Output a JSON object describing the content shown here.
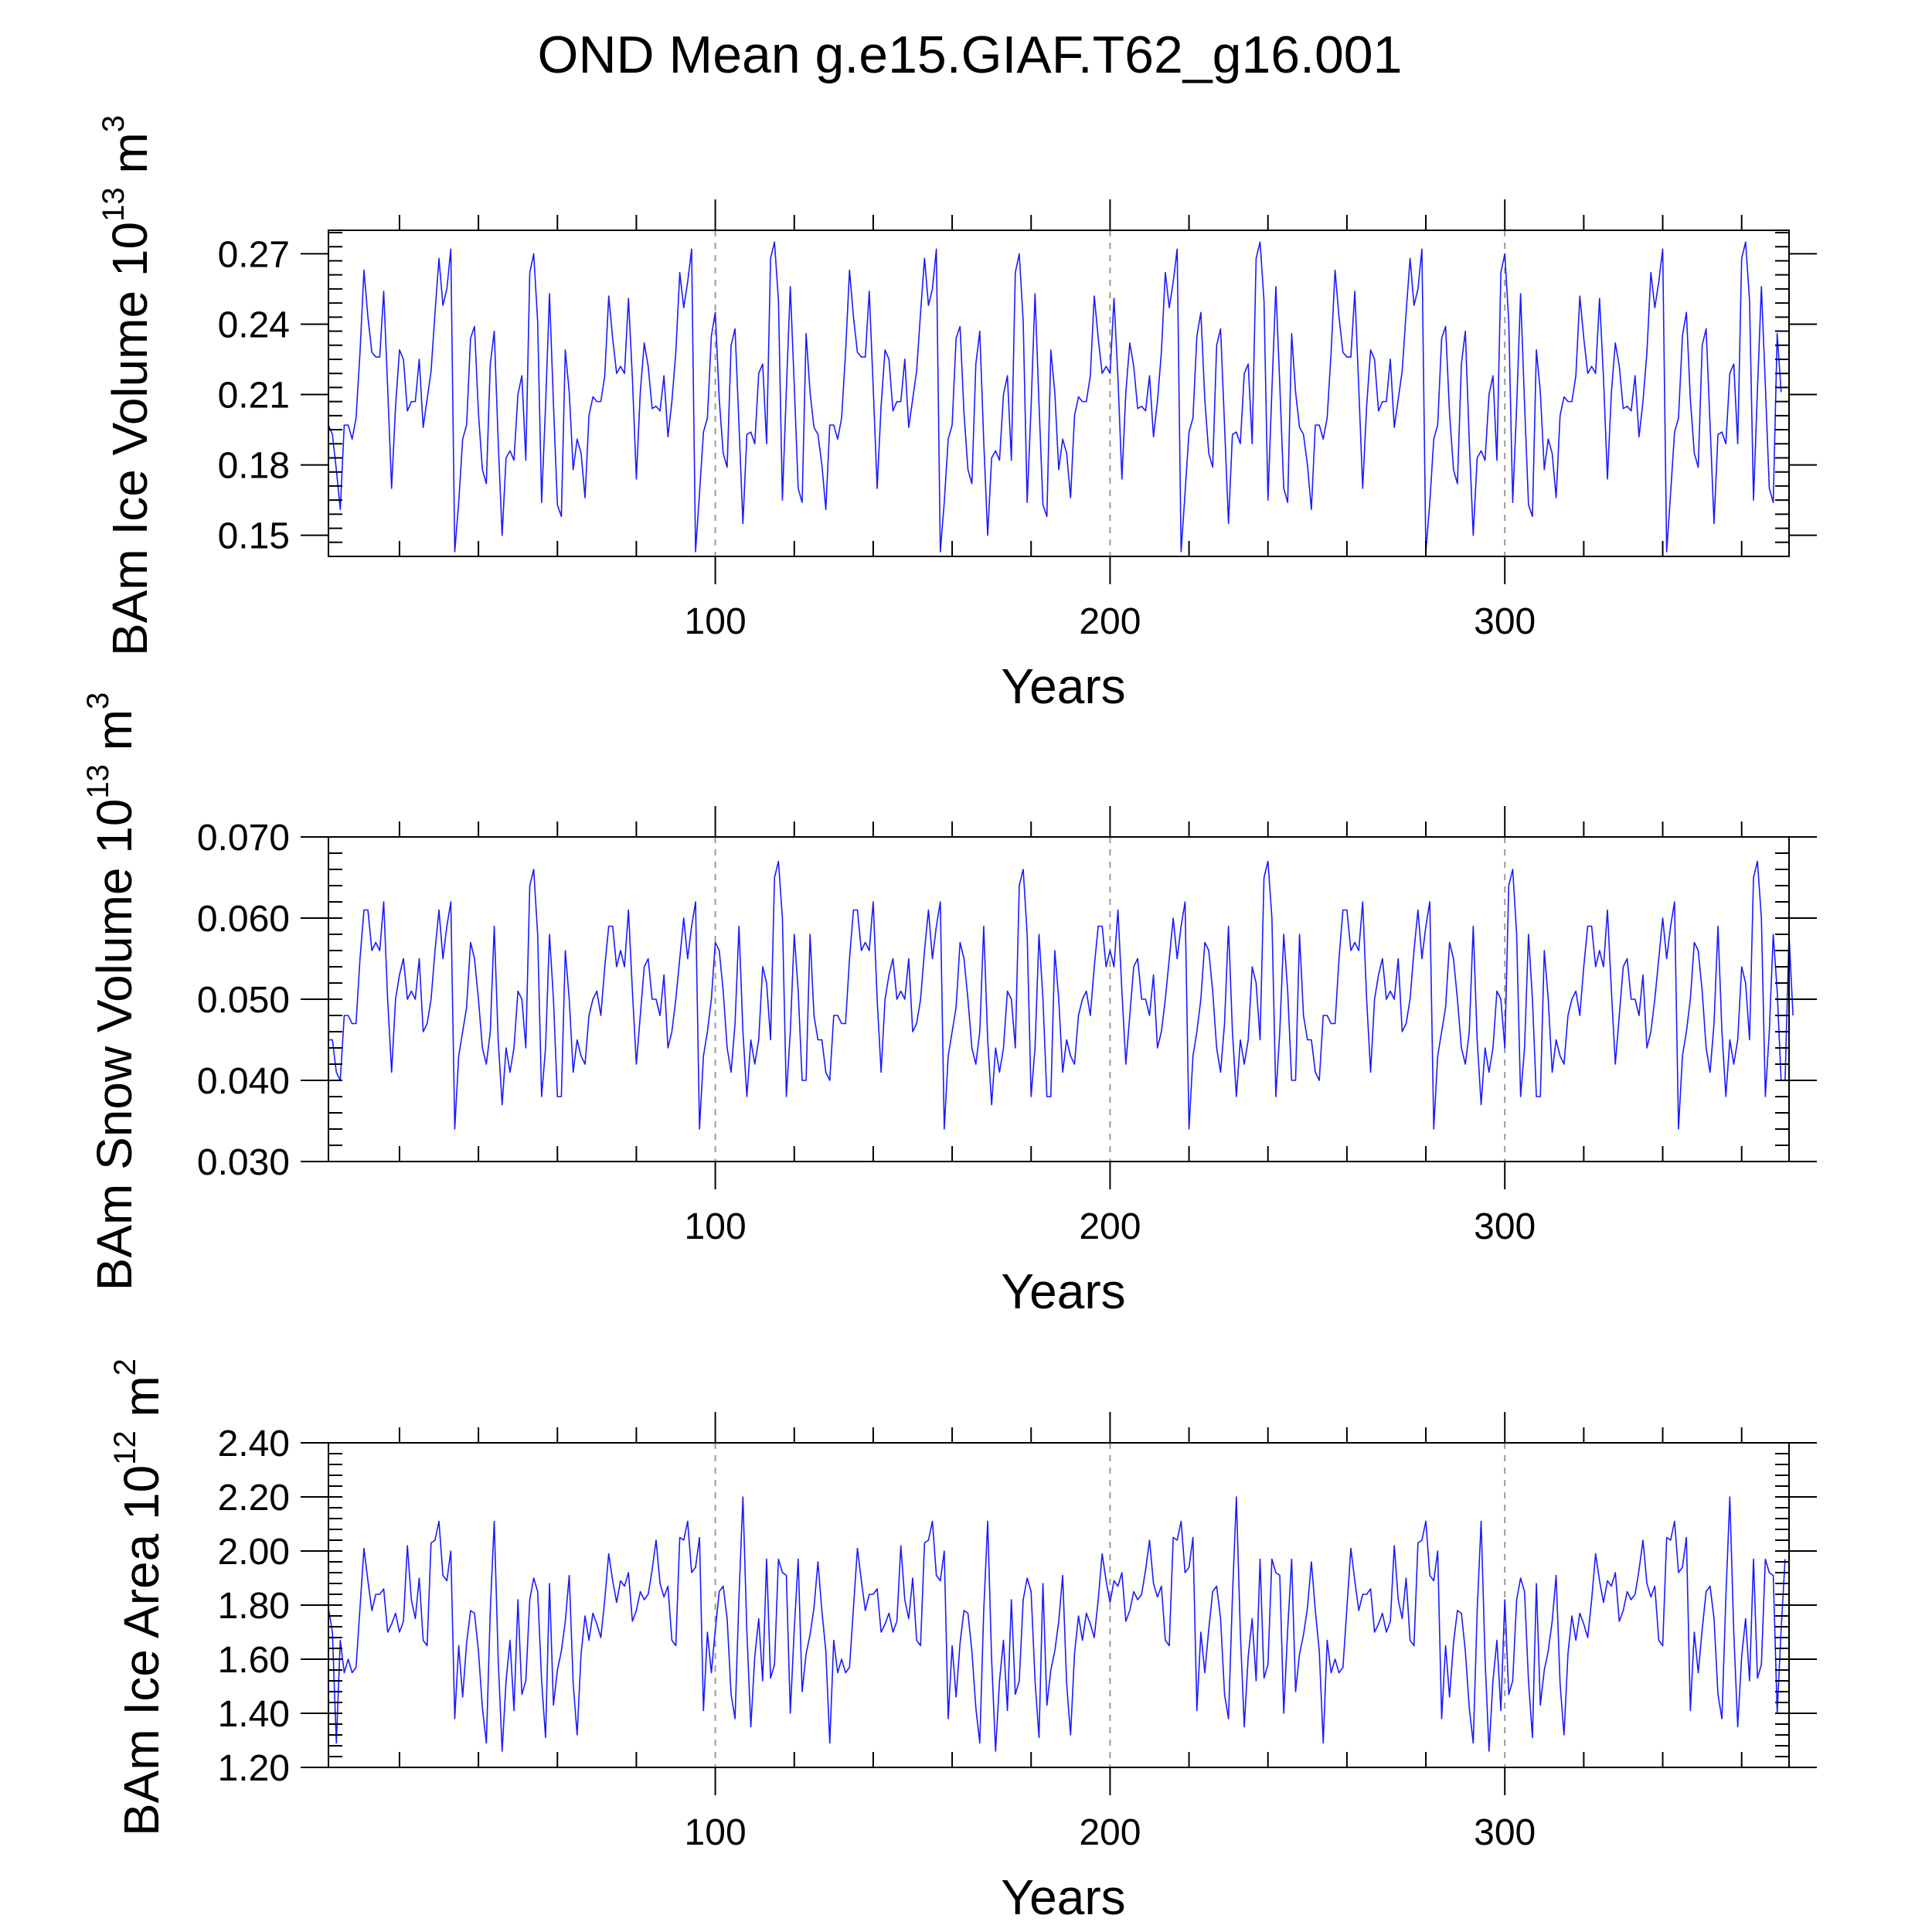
{
  "figure_title": "OND Mean g.e15.GIAF.T62_g16.001",
  "chart_data": [
    {
      "type": "line",
      "ylabel_main": "BAm Ice Volume 10",
      "ylabel_exp": "13",
      "ylabel_unit": " m",
      "ylabel_unit_exp": "3",
      "xlabel": "Years",
      "xlim": [
        2,
        372
      ],
      "ylim": [
        0.141,
        0.28
      ],
      "x_ticks": [
        100,
        200,
        300
      ],
      "x_tick_labels": [
        "100",
        "200",
        "300"
      ],
      "y_ticks": [
        0.15,
        0.18,
        0.21,
        0.24,
        0.27
      ],
      "y_tick_labels": [
        "0.15",
        "0.18",
        "0.21",
        "0.24",
        "0.27"
      ],
      "grid_x": [
        100,
        200,
        300
      ],
      "x_start": 2,
      "values": [
        0.197,
        0.193,
        0.178,
        0.161,
        0.197,
        0.197,
        0.191,
        0.2,
        0.228,
        0.263,
        0.243,
        0.228,
        0.226,
        0.226,
        0.254,
        0.213,
        0.17,
        0.205,
        0.229,
        0.225,
        0.203,
        0.207,
        0.207,
        0.225,
        0.196,
        0.208,
        0.22,
        0.245,
        0.268,
        0.248,
        0.255,
        0.272,
        0.143,
        0.164,
        0.191,
        0.197,
        0.234,
        0.239,
        0.202,
        0.178,
        0.172,
        0.223,
        0.237,
        0.19,
        0.15,
        0.183,
        0.186,
        0.182,
        0.21,
        0.218,
        0.182,
        0.262,
        0.27,
        0.241,
        0.164,
        0.205,
        0.253,
        0.206,
        0.163,
        0.158,
        0.229,
        0.211,
        0.178,
        0.191,
        0.185,
        0.166,
        0.201,
        0.209,
        0.207,
        0.207,
        0.218,
        0.252,
        0.234,
        0.219,
        0.222,
        0.219,
        0.251,
        0.217,
        0.174,
        0.211,
        0.232,
        0.222,
        0.204,
        0.205,
        0.203,
        0.218,
        0.192,
        0.207,
        0.228,
        0.262,
        0.247,
        0.258,
        0.272,
        0.143,
        0.168,
        0.194,
        0.2,
        0.235,
        0.245,
        0.208,
        0.185,
        0.179,
        0.231,
        0.238,
        0.197,
        0.155,
        0.193,
        0.194,
        0.189,
        0.219,
        0.223,
        0.189,
        0.268,
        0.275,
        0.25,
        0.165,
        0.212,
        0.256,
        0.214,
        0.17,
        0.164,
        0.236,
        0.211,
        0.196,
        0.193,
        0.18,
        0.161,
        0.197,
        0.197,
        0.191,
        0.2,
        0.228,
        0.263,
        0.243,
        0.228,
        0.226,
        0.226,
        0.254,
        0.213,
        0.17,
        0.205,
        0.229,
        0.225,
        0.203,
        0.207,
        0.207,
        0.225,
        0.196,
        0.208,
        0.22,
        0.245,
        0.268,
        0.248,
        0.255,
        0.272,
        0.143,
        0.164,
        0.191,
        0.197,
        0.234,
        0.239,
        0.202,
        0.178,
        0.172,
        0.223,
        0.237,
        0.19,
        0.15,
        0.183,
        0.186,
        0.182,
        0.21,
        0.218,
        0.182,
        0.262,
        0.27,
        0.241,
        0.164,
        0.205,
        0.253,
        0.206,
        0.163,
        0.158,
        0.229,
        0.211,
        0.178,
        0.191,
        0.185,
        0.166,
        0.201,
        0.209,
        0.207,
        0.207,
        0.218,
        0.252,
        0.234,
        0.219,
        0.222,
        0.219,
        0.251,
        0.217,
        0.174,
        0.211,
        0.232,
        0.222,
        0.204,
        0.205,
        0.203,
        0.218,
        0.192,
        0.207,
        0.228,
        0.262,
        0.247,
        0.258,
        0.272,
        0.143,
        0.168,
        0.194,
        0.2,
        0.235,
        0.245,
        0.208,
        0.185,
        0.179,
        0.231,
        0.238,
        0.197,
        0.155,
        0.193,
        0.194,
        0.189,
        0.219,
        0.223,
        0.189,
        0.268,
        0.275,
        0.25,
        0.165,
        0.212,
        0.256,
        0.214,
        0.17,
        0.164,
        0.236,
        0.211,
        0.196,
        0.193,
        0.18,
        0.161,
        0.197,
        0.197,
        0.191,
        0.2,
        0.228,
        0.263,
        0.243,
        0.228,
        0.226,
        0.226,
        0.254,
        0.213,
        0.17,
        0.205,
        0.229,
        0.225,
        0.203,
        0.207,
        0.207,
        0.225,
        0.196,
        0.208,
        0.22,
        0.245,
        0.268,
        0.248,
        0.255,
        0.272,
        0.143,
        0.164,
        0.191,
        0.197,
        0.234,
        0.239,
        0.202,
        0.178,
        0.172,
        0.223,
        0.237,
        0.19,
        0.15,
        0.183,
        0.186,
        0.182,
        0.21,
        0.218,
        0.182,
        0.262,
        0.27,
        0.241,
        0.164,
        0.205,
        0.253,
        0.206,
        0.163,
        0.158,
        0.229,
        0.211,
        0.178,
        0.191,
        0.185,
        0.166,
        0.201,
        0.209,
        0.207,
        0.207,
        0.218,
        0.252,
        0.234,
        0.219,
        0.222,
        0.219,
        0.251,
        0.217,
        0.174,
        0.211,
        0.232,
        0.222,
        0.204,
        0.205,
        0.203,
        0.218,
        0.192,
        0.207,
        0.228,
        0.262,
        0.247,
        0.258,
        0.272,
        0.143,
        0.168,
        0.194,
        0.2,
        0.235,
        0.245,
        0.208,
        0.185,
        0.179,
        0.231,
        0.238,
        0.197,
        0.155,
        0.193,
        0.194,
        0.189,
        0.219,
        0.223,
        0.189,
        0.268,
        0.275,
        0.25,
        0.165,
        0.212,
        0.256,
        0.214,
        0.17,
        0.164,
        0.236,
        0.211
      ]
    },
    {
      "type": "line",
      "ylabel_main": "BAm Snow Volume 10",
      "ylabel_exp": "13",
      "ylabel_unit": " m",
      "ylabel_unit_exp": "3",
      "xlabel": "Years",
      "xlim": [
        2,
        372
      ],
      "ylim": [
        0.03,
        0.07
      ],
      "x_ticks": [
        100,
        200,
        300
      ],
      "x_tick_labels": [
        "100",
        "200",
        "300"
      ],
      "y_ticks": [
        0.03,
        0.04,
        0.05,
        0.06,
        0.07
      ],
      "y_tick_labels": [
        "0.030",
        "0.040",
        "0.050",
        "0.060",
        "0.070"
      ],
      "grid_x": [
        100,
        200,
        300
      ],
      "x_start": 2,
      "values": [
        0.045,
        0.045,
        0.041,
        0.04,
        0.048,
        0.048,
        0.047,
        0.047,
        0.055,
        0.061,
        0.061,
        0.056,
        0.057,
        0.056,
        0.062,
        0.05,
        0.041,
        0.05,
        0.053,
        0.055,
        0.05,
        0.051,
        0.05,
        0.055,
        0.046,
        0.047,
        0.05,
        0.056,
        0.061,
        0.055,
        0.059,
        0.062,
        0.034,
        0.043,
        0.046,
        0.049,
        0.057,
        0.055,
        0.05,
        0.044,
        0.042,
        0.046,
        0.059,
        0.045,
        0.037,
        0.044,
        0.041,
        0.044,
        0.051,
        0.05,
        0.044,
        0.064,
        0.066,
        0.058,
        0.038,
        0.044,
        0.058,
        0.05,
        0.038,
        0.038,
        0.056,
        0.05,
        0.041,
        0.045,
        0.043,
        0.042,
        0.048,
        0.05,
        0.051,
        0.048,
        0.054,
        0.059,
        0.059,
        0.054,
        0.056,
        0.054,
        0.061,
        0.051,
        0.042,
        0.048,
        0.054,
        0.055,
        0.05,
        0.05,
        0.048,
        0.053,
        0.044,
        0.046,
        0.05,
        0.055,
        0.06,
        0.055,
        0.059,
        0.062,
        0.034,
        0.043,
        0.046,
        0.05,
        0.057,
        0.056,
        0.051,
        0.044,
        0.041,
        0.047,
        0.059,
        0.046,
        0.038,
        0.045,
        0.042,
        0.045,
        0.054,
        0.052,
        0.045,
        0.065,
        0.067,
        0.06,
        0.038,
        0.046,
        0.058,
        0.051,
        0.04,
        0.04,
        0.058,
        0.048,
        0.045,
        0.045,
        0.041,
        0.04,
        0.048,
        0.048,
        0.047,
        0.047,
        0.055,
        0.061,
        0.061,
        0.056,
        0.057,
        0.056,
        0.062,
        0.05,
        0.041,
        0.05,
        0.053,
        0.055,
        0.05,
        0.051,
        0.05,
        0.055,
        0.046,
        0.047,
        0.05,
        0.056,
        0.061,
        0.055,
        0.059,
        0.062,
        0.034,
        0.043,
        0.046,
        0.049,
        0.057,
        0.055,
        0.05,
        0.044,
        0.042,
        0.046,
        0.059,
        0.045,
        0.037,
        0.044,
        0.041,
        0.044,
        0.051,
        0.05,
        0.044,
        0.064,
        0.066,
        0.058,
        0.038,
        0.044,
        0.058,
        0.05,
        0.038,
        0.038,
        0.056,
        0.05,
        0.041,
        0.045,
        0.043,
        0.042,
        0.048,
        0.05,
        0.051,
        0.048,
        0.054,
        0.059,
        0.059,
        0.054,
        0.056,
        0.054,
        0.061,
        0.051,
        0.042,
        0.048,
        0.054,
        0.055,
        0.05,
        0.05,
        0.048,
        0.053,
        0.044,
        0.046,
        0.05,
        0.055,
        0.06,
        0.055,
        0.059,
        0.062,
        0.034,
        0.043,
        0.046,
        0.05,
        0.057,
        0.056,
        0.051,
        0.044,
        0.041,
        0.047,
        0.059,
        0.046,
        0.038,
        0.045,
        0.042,
        0.045,
        0.054,
        0.052,
        0.045,
        0.065,
        0.067,
        0.06,
        0.038,
        0.046,
        0.058,
        0.051,
        0.04,
        0.04,
        0.058,
        0.048,
        0.045,
        0.045,
        0.041,
        0.04,
        0.048,
        0.048,
        0.047,
        0.047,
        0.055,
        0.061,
        0.061,
        0.056,
        0.057,
        0.056,
        0.062,
        0.05,
        0.041,
        0.05,
        0.053,
        0.055,
        0.05,
        0.051,
        0.05,
        0.055,
        0.046,
        0.047,
        0.05,
        0.056,
        0.061,
        0.055,
        0.059,
        0.062,
        0.034,
        0.043,
        0.046,
        0.049,
        0.057,
        0.055,
        0.05,
        0.044,
        0.042,
        0.046,
        0.059,
        0.045,
        0.037,
        0.044,
        0.041,
        0.044,
        0.051,
        0.05,
        0.044,
        0.064,
        0.066,
        0.058,
        0.038,
        0.044,
        0.058,
        0.05,
        0.038,
        0.038,
        0.056,
        0.05,
        0.041,
        0.045,
        0.043,
        0.042,
        0.048,
        0.05,
        0.051,
        0.048,
        0.054,
        0.059,
        0.059,
        0.054,
        0.056,
        0.054,
        0.061,
        0.051,
        0.042,
        0.048,
        0.054,
        0.055,
        0.05,
        0.05,
        0.048,
        0.053,
        0.044,
        0.046,
        0.05,
        0.055,
        0.06,
        0.055,
        0.059,
        0.062,
        0.034,
        0.043,
        0.046,
        0.05,
        0.057,
        0.056,
        0.051,
        0.044,
        0.041,
        0.047,
        0.059,
        0.046,
        0.038,
        0.045,
        0.042,
        0.045,
        0.054,
        0.052,
        0.045,
        0.065,
        0.067,
        0.06,
        0.038,
        0.046,
        0.058,
        0.051,
        0.04,
        0.04,
        0.058,
        0.048
      ]
    },
    {
      "type": "line",
      "ylabel_main": "BAm Ice Area 10",
      "ylabel_exp": "12",
      "ylabel_unit": " m",
      "ylabel_unit_exp": "2",
      "xlabel": "Years",
      "xlim": [
        2,
        372
      ],
      "ylim": [
        1.2,
        2.4
      ],
      "x_ticks": [
        100,
        200,
        300
      ],
      "x_tick_labels": [
        "100",
        "200",
        "300"
      ],
      "y_ticks": [
        1.2,
        1.4,
        1.6,
        1.8,
        2.0,
        2.2,
        2.4
      ],
      "y_tick_labels": [
        "1.20",
        "1.40",
        "1.60",
        "1.80",
        "2.00",
        "2.20",
        "2.40"
      ],
      "grid_x": [
        100,
        200,
        300
      ],
      "x_start": 2,
      "values": [
        1.79,
        1.7,
        1.29,
        1.67,
        1.55,
        1.6,
        1.55,
        1.57,
        1.79,
        2.01,
        1.89,
        1.78,
        1.84,
        1.84,
        1.86,
        1.7,
        1.73,
        1.77,
        1.7,
        1.74,
        2.02,
        1.82,
        1.75,
        1.9,
        1.67,
        1.65,
        2.03,
        2.04,
        2.11,
        1.91,
        1.89,
        2.0,
        1.38,
        1.65,
        1.46,
        1.66,
        1.78,
        1.77,
        1.63,
        1.42,
        1.29,
        1.78,
        2.11,
        1.6,
        1.26,
        1.52,
        1.67,
        1.41,
        1.82,
        1.47,
        1.52,
        1.82,
        1.9,
        1.85,
        1.52,
        1.31,
        1.88,
        1.43,
        1.56,
        1.63,
        1.74,
        1.91,
        1.51,
        1.32,
        1.62,
        1.76,
        1.67,
        1.77,
        1.73,
        1.68,
        1.82,
        1.99,
        1.89,
        1.81,
        1.89,
        1.87,
        1.92,
        1.74,
        1.78,
        1.85,
        1.82,
        1.84,
        1.93,
        2.04,
        1.88,
        1.83,
        1.87,
        1.67,
        1.65,
        2.05,
        2.04,
        2.11,
        1.92,
        1.94,
        2.05,
        1.41,
        1.7,
        1.55,
        1.71,
        1.85,
        1.87,
        1.75,
        1.47,
        1.38,
        1.83,
        2.2,
        1.7,
        1.35,
        1.61,
        1.75,
        1.52,
        1.97,
        1.53,
        1.58,
        1.97,
        1.92,
        1.91,
        1.4,
        1.71,
        1.97,
        1.48,
        1.62,
        1.69,
        1.79,
        1.96,
        1.78,
        1.63,
        1.29,
        1.67,
        1.55,
        1.6,
        1.55,
        1.57,
        1.79,
        2.01,
        1.89,
        1.78,
        1.84,
        1.84,
        1.86,
        1.7,
        1.73,
        1.77,
        1.7,
        1.74,
        2.02,
        1.82,
        1.75,
        1.9,
        1.67,
        1.65,
        2.03,
        2.04,
        2.11,
        1.91,
        1.89,
        2.0,
        1.38,
        1.65,
        1.46,
        1.66,
        1.78,
        1.77,
        1.63,
        1.42,
        1.29,
        1.78,
        2.11,
        1.6,
        1.26,
        1.52,
        1.67,
        1.41,
        1.82,
        1.47,
        1.52,
        1.82,
        1.9,
        1.85,
        1.52,
        1.31,
        1.88,
        1.43,
        1.56,
        1.63,
        1.74,
        1.91,
        1.51,
        1.32,
        1.62,
        1.76,
        1.67,
        1.77,
        1.73,
        1.68,
        1.82,
        1.99,
        1.89,
        1.81,
        1.89,
        1.87,
        1.92,
        1.74,
        1.78,
        1.85,
        1.82,
        1.84,
        1.93,
        2.04,
        1.88,
        1.83,
        1.87,
        1.67,
        1.65,
        2.05,
        2.04,
        2.11,
        1.92,
        1.94,
        2.05,
        1.41,
        1.7,
        1.55,
        1.71,
        1.85,
        1.87,
        1.75,
        1.47,
        1.38,
        1.83,
        2.2,
        1.7,
        1.35,
        1.61,
        1.75,
        1.52,
        1.97,
        1.53,
        1.58,
        1.97,
        1.92,
        1.91,
        1.4,
        1.71,
        1.97,
        1.48,
        1.62,
        1.69,
        1.79,
        1.96,
        1.78,
        1.63,
        1.29,
        1.67,
        1.55,
        1.6,
        1.55,
        1.57,
        1.79,
        2.01,
        1.89,
        1.78,
        1.84,
        1.84,
        1.86,
        1.7,
        1.73,
        1.77,
        1.7,
        1.74,
        2.02,
        1.82,
        1.75,
        1.9,
        1.67,
        1.65,
        2.03,
        2.04,
        2.11,
        1.91,
        1.89,
        2.0,
        1.38,
        1.65,
        1.46,
        1.66,
        1.78,
        1.77,
        1.63,
        1.42,
        1.29,
        1.78,
        2.11,
        1.6,
        1.26,
        1.52,
        1.67,
        1.41,
        1.82,
        1.47,
        1.52,
        1.82,
        1.9,
        1.85,
        1.52,
        1.31,
        1.88,
        1.43,
        1.56,
        1.63,
        1.74,
        1.91,
        1.51,
        1.32,
        1.62,
        1.76,
        1.67,
        1.77,
        1.73,
        1.68,
        1.82,
        1.99,
        1.89,
        1.81,
        1.89,
        1.87,
        1.92,
        1.74,
        1.78,
        1.85,
        1.82,
        1.84,
        1.93,
        2.04,
        1.88,
        1.83,
        1.87,
        1.67,
        1.65,
        2.05,
        2.04,
        2.11,
        1.92,
        1.94,
        2.05,
        1.41,
        1.7,
        1.55,
        1.71,
        1.85,
        1.87,
        1.75,
        1.47,
        1.38,
        1.83,
        2.2,
        1.7,
        1.35,
        1.61,
        1.75,
        1.52,
        1.97,
        1.53,
        1.58,
        1.97,
        1.92,
        1.91,
        1.4,
        1.71,
        1.97
      ]
    }
  ],
  "colors": {
    "series": "#1a1aff",
    "frame": "#000000",
    "grid": "#9a9a9a"
  }
}
